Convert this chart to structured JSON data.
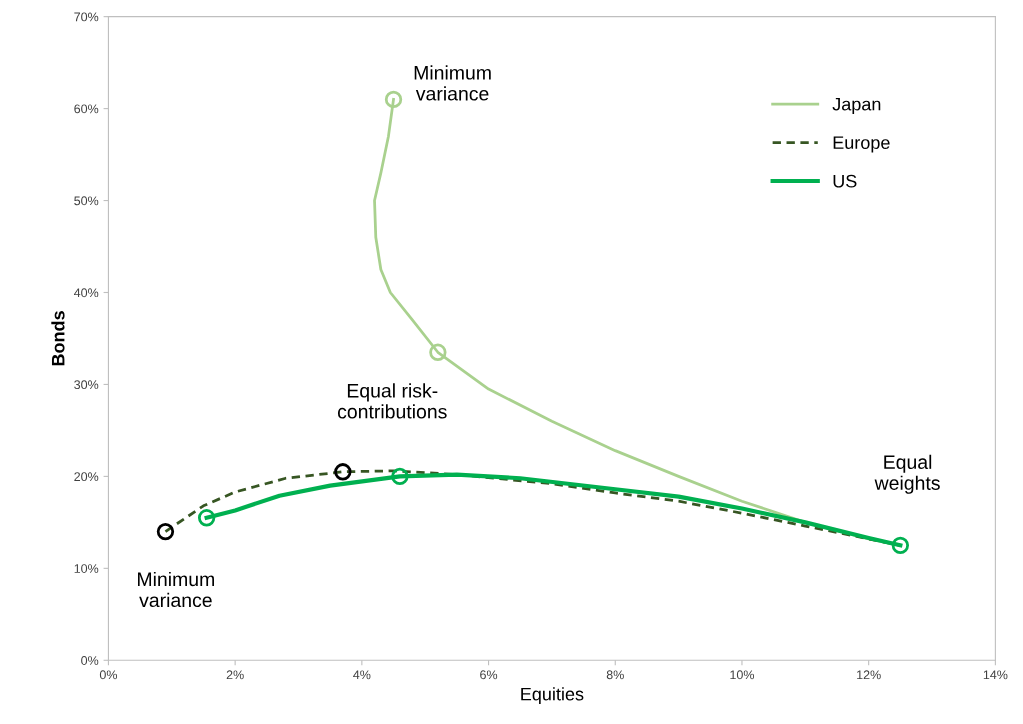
{
  "chart_data": {
    "type": "line",
    "xlabel": "Equities",
    "ylabel": "Bonds",
    "xlim": [
      0,
      14
    ],
    "ylim": [
      0,
      70
    ],
    "xticks": [
      {
        "value": 0,
        "label": "0%"
      },
      {
        "value": 2,
        "label": "2%"
      },
      {
        "value": 4,
        "label": "4%"
      },
      {
        "value": 6,
        "label": "6%"
      },
      {
        "value": 8,
        "label": "8%"
      },
      {
        "value": 10,
        "label": "10%"
      },
      {
        "value": 12,
        "label": "12%"
      },
      {
        "value": 14,
        "label": "14%"
      }
    ],
    "yticks": [
      {
        "value": 0,
        "label": "0%"
      },
      {
        "value": 10,
        "label": "10%"
      },
      {
        "value": 20,
        "label": "20%"
      },
      {
        "value": 30,
        "label": "30%"
      },
      {
        "value": 40,
        "label": "40%"
      },
      {
        "value": 50,
        "label": "50%"
      },
      {
        "value": 60,
        "label": "60%"
      },
      {
        "value": 70,
        "label": "70%"
      }
    ],
    "grid": false,
    "legend": "top right",
    "series": [
      {
        "name": "Japan",
        "color": "#a9d18e",
        "line_style": "solid",
        "marker": "none",
        "x": [
          4.5,
          4.42,
          4.3,
          4.2,
          4.22,
          4.3,
          4.45,
          4.8,
          5.2,
          6,
          7,
          8,
          9,
          10,
          11,
          12,
          12.5
        ],
        "values": [
          61,
          57,
          53,
          50,
          46,
          42.5,
          40,
          37,
          33.5,
          29.5,
          26,
          22.8,
          20,
          17.3,
          15,
          13.2,
          12.5
        ]
      },
      {
        "name": "Europe",
        "color": "#375623",
        "line_style": "dashed",
        "marker": "none",
        "x": [
          0.9,
          1.5,
          2,
          2.8,
          3.7,
          4.5,
          5.5,
          7,
          8,
          9,
          10,
          11,
          12,
          12.5
        ],
        "values": [
          14,
          16.8,
          18.3,
          19.8,
          20.5,
          20.6,
          20.2,
          19.2,
          18.2,
          17.3,
          16,
          14.6,
          13.2,
          12.5
        ]
      },
      {
        "name": "US",
        "color": "#00b050",
        "line_style": "solid",
        "marker": "none",
        "x": [
          1.55,
          2,
          2.7,
          3.5,
          4.6,
          5.5,
          6.5,
          8,
          9,
          10,
          11,
          12,
          12.5
        ],
        "values": [
          15.5,
          16.3,
          17.9,
          19,
          20,
          20.2,
          19.8,
          18.6,
          17.8,
          16.5,
          15,
          13.3,
          12.5
        ]
      },
      {
        "type": "scatter",
        "color": "#a9d18e",
        "marker": "circle",
        "x": [
          4.5,
          5.2
        ],
        "values": [
          61,
          33.5
        ]
      },
      {
        "type": "scatter",
        "color": "#000000",
        "marker": "circle",
        "x": [
          0.9,
          3.7
        ],
        "values": [
          14,
          20.5
        ]
      },
      {
        "type": "scatter",
        "color": "#00b050",
        "marker": "circle",
        "x": [
          1.55,
          4.6,
          12.5
        ],
        "values": [
          15.5,
          20,
          12.5
        ]
      }
    ],
    "annotations": [
      "Minimum\nvariance",
      "Equal risk-\ncontributions",
      "Equal\nweights",
      "Minimum\nvariance"
    ]
  }
}
